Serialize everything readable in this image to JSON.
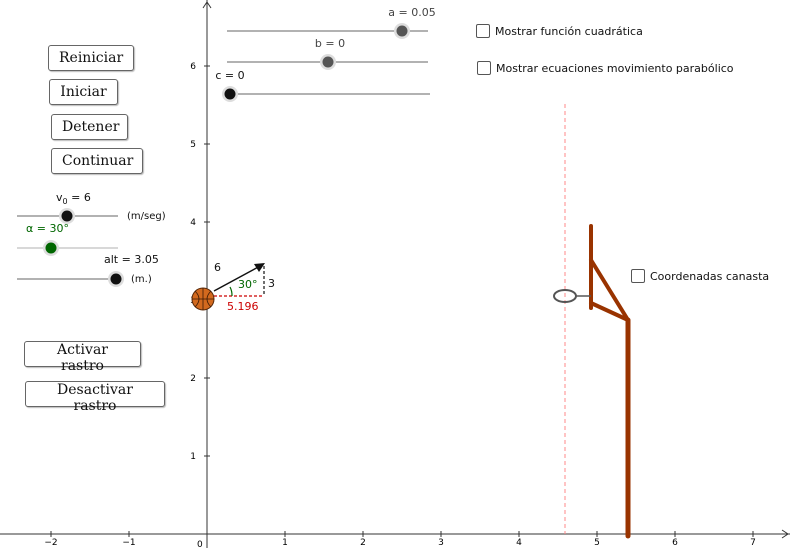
{
  "buttons": {
    "reiniciar": "Reiniciar",
    "iniciar": "Iniciar",
    "detener": "Detener",
    "continuar": "Continuar",
    "activar_rastro": "Activar rastro",
    "desactivar_rastro": "Desactivar rastro"
  },
  "checkboxes": {
    "funcion_cuadratica": "Mostrar función cuadrática",
    "ecuaciones": "Mostrar ecuaciones movimiento parabólico",
    "coordenadas": "Coordenadas canasta"
  },
  "sliders": {
    "a": {
      "label": "a = 0.05",
      "value": 0.05
    },
    "b": {
      "label": "b = 0",
      "value": 0
    },
    "c": {
      "label": "c = 0",
      "value": 0
    },
    "v0": {
      "label": "v",
      "sub": "0",
      "value_text": " = 6",
      "unit": "(m/seg)",
      "value": 6
    },
    "alpha": {
      "label": "α = 30°",
      "value": 30
    },
    "alt": {
      "label": "alt = 3.05",
      "unit": "(m.)",
      "value": 3.05
    }
  },
  "vector": {
    "magnitude": "6",
    "angle": "30°",
    "vertical": "3",
    "horizontal": "5.196"
  },
  "axes": {
    "x_ticks": [
      "−2",
      "−1",
      "1",
      "2",
      "3",
      "4",
      "5",
      "6",
      "7"
    ],
    "y_ticks": [
      "1",
      "2",
      "3",
      "4",
      "5",
      "6"
    ],
    "origin": "0"
  },
  "colors": {
    "hoop": "#993300",
    "vertical_line": "#ff8888",
    "angle": "#006600",
    "horizontal_component": "#cc0000",
    "ball": "#d2691e"
  }
}
